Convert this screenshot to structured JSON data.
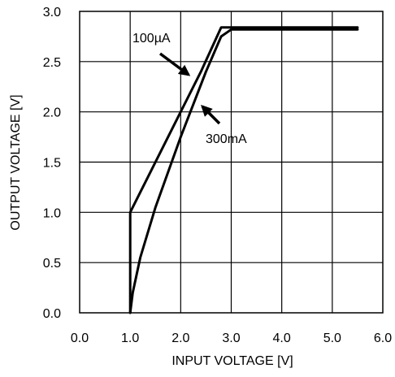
{
  "chart_data": {
    "type": "line",
    "title": "",
    "xlabel": "INPUT VOLTAGE [V]",
    "ylabel": "OUTPUT VOLTAGE [V]",
    "xlim": [
      0,
      6
    ],
    "ylim": [
      0,
      3
    ],
    "xticks": [
      "0.0",
      "1.0",
      "2.0",
      "3.0",
      "4.0",
      "5.0",
      "6.0"
    ],
    "yticks": [
      "0.0",
      "0.5",
      "1.0",
      "1.5",
      "2.0",
      "2.5",
      "3.0"
    ],
    "grid": true,
    "series": [
      {
        "name": "100µA",
        "x": [
          1.0,
          1.0,
          1.4,
          2.0,
          2.4,
          2.8,
          5.5
        ],
        "y": [
          0.0,
          1.0,
          1.4,
          2.0,
          2.4,
          2.84,
          2.84
        ]
      },
      {
        "name": "300mA",
        "x": [
          1.0,
          1.05,
          1.2,
          1.5,
          2.0,
          2.5,
          2.8,
          3.0,
          5.5
        ],
        "y": [
          0.0,
          0.2,
          0.55,
          1.05,
          1.75,
          2.4,
          2.75,
          2.82,
          2.82
        ]
      }
    ],
    "annotations": [
      {
        "text": "100µA",
        "arrow_to": [
          2.3,
          2.35
        ]
      },
      {
        "text": "300mA",
        "arrow_to": [
          2.45,
          2.0
        ]
      }
    ]
  }
}
